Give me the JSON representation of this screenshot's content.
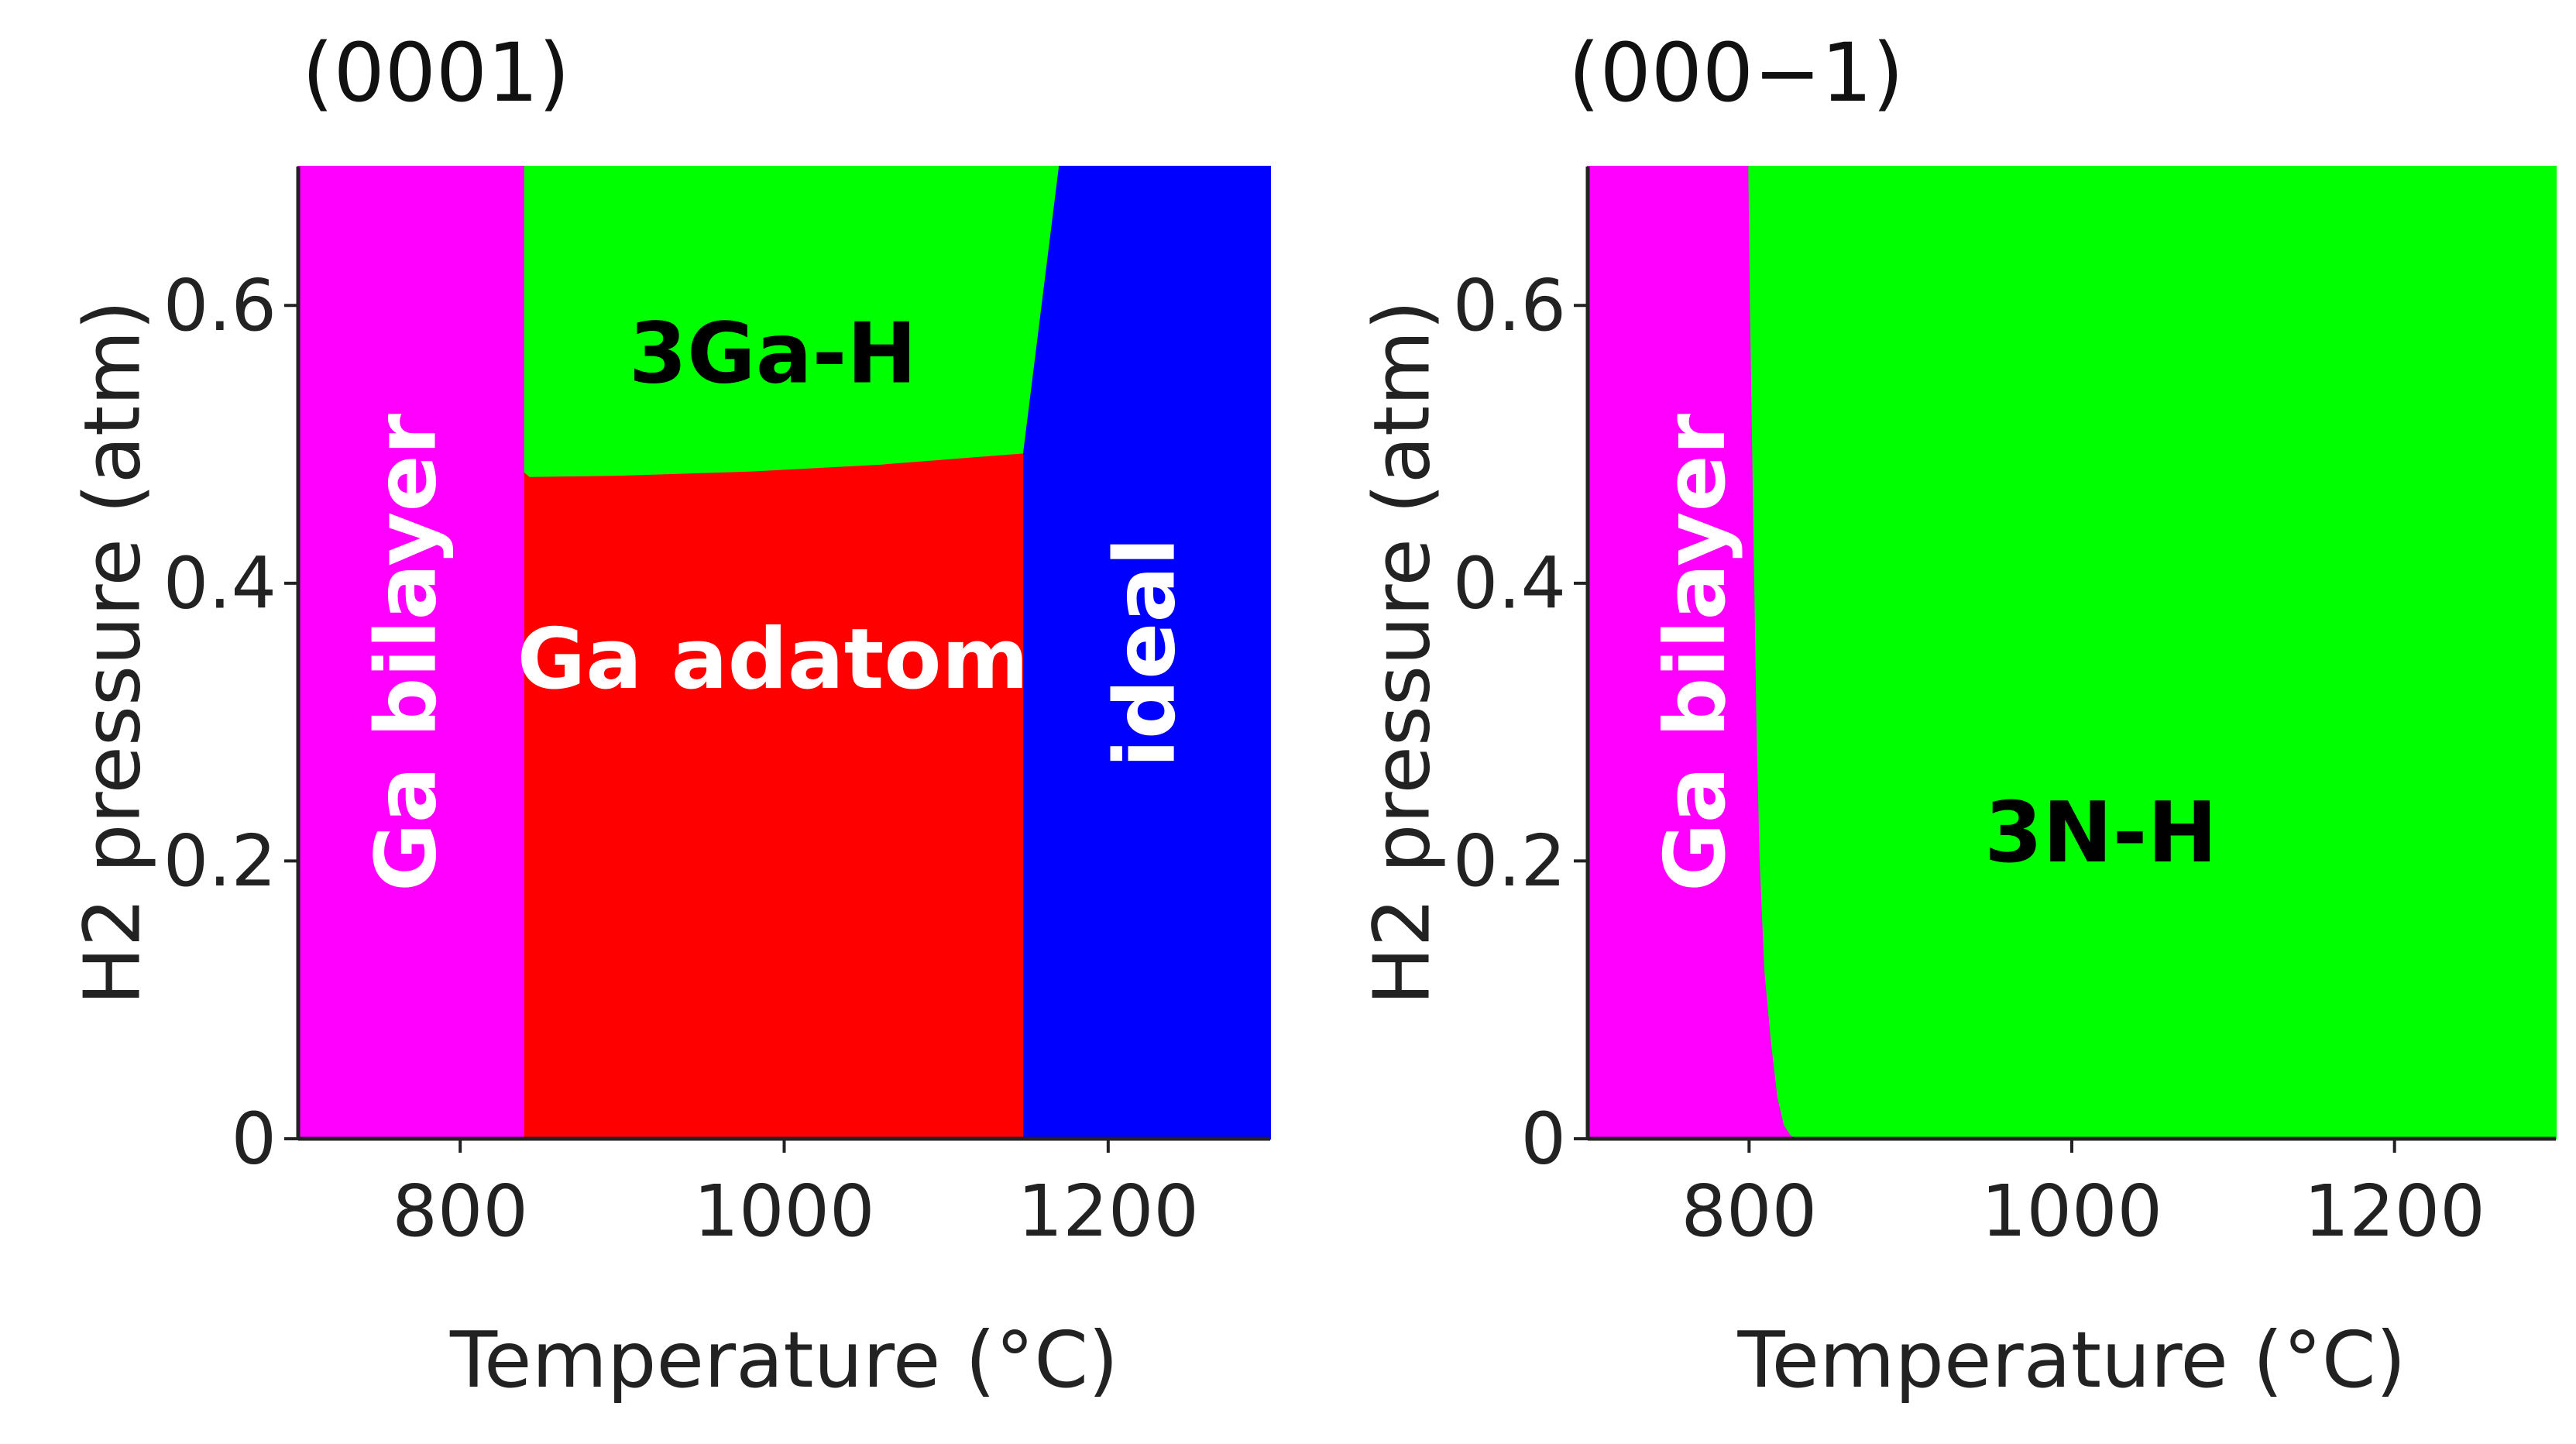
{
  "chart_data": [
    {
      "type": "area",
      "title": "(0001)",
      "xlabel": "Temperature (°C)",
      "ylabel": "H2 pressure (atm)",
      "xlim": [
        700,
        1300
      ],
      "ylim": [
        0,
        0.7
      ],
      "x_ticks": [
        "800",
        "1000",
        "1200"
      ],
      "x_tick_values": [
        800,
        1000,
        1200
      ],
      "y_ticks": [
        "0",
        "0.2",
        "0.4",
        "0.6"
      ],
      "y_tick_values": [
        0,
        0.2,
        0.4,
        0.6
      ],
      "regions": [
        {
          "name": "Ga bilayer",
          "color": "#ff00ff",
          "label_color": "#ffffff",
          "label_rotation": "vertical",
          "label_at": [
            767,
            0.35
          ],
          "polygon": [
            [
              700,
              0
            ],
            [
              840,
              0
            ],
            [
              840,
              0.7
            ],
            [
              700,
              0.7
            ]
          ]
        },
        {
          "name": "Ga adatom",
          "color": "#ff0000",
          "label_color": "#ffffff",
          "label_rotation": "horizontal",
          "label_at": [
            993,
            0.345
          ],
          "polygon": [
            [
              840,
              0
            ],
            [
              1148,
              0
            ],
            [
              1148,
              0.494
            ],
            [
              1060,
              0.486
            ],
            [
              980,
              0.481
            ],
            [
              900,
              0.478
            ],
            [
              843,
              0.477
            ],
            [
              840,
              0.48
            ]
          ]
        },
        {
          "name": "3Ga-H",
          "color": "#00ff00",
          "label_color": "#000000",
          "label_rotation": "horizontal",
          "label_at": [
            993,
            0.565
          ],
          "polygon": [
            [
              840,
              0.48
            ],
            [
              843,
              0.477
            ],
            [
              900,
              0.478
            ],
            [
              980,
              0.481
            ],
            [
              1060,
              0.486
            ],
            [
              1148,
              0.494
            ],
            [
              1170,
              0.7
            ],
            [
              840,
              0.7
            ]
          ]
        },
        {
          "name": "ideal",
          "color": "#0000ff",
          "label_color": "#ffffff",
          "label_rotation": "vertical",
          "label_at": [
            1223,
            0.35
          ],
          "polygon": [
            [
              1148,
              0
            ],
            [
              1300,
              0
            ],
            [
              1300,
              0.7
            ],
            [
              1170,
              0.7
            ],
            [
              1148,
              0.494
            ]
          ]
        }
      ]
    },
    {
      "type": "area",
      "title": "(000−1)",
      "xlabel": "Temperature (°C)",
      "ylabel": "H2 pressure (atm)",
      "xlim": [
        700,
        1300
      ],
      "ylim": [
        0,
        0.7
      ],
      "x_ticks": [
        "800",
        "1000",
        "1200"
      ],
      "x_tick_values": [
        800,
        1000,
        1200
      ],
      "y_ticks": [
        "0",
        "0.2",
        "0.4",
        "0.6"
      ],
      "y_tick_values": [
        0,
        0.2,
        0.4,
        0.6
      ],
      "regions": [
        {
          "name": "Ga bilayer",
          "color": "#ff00ff",
          "label_color": "#ffffff",
          "label_rotation": "vertical",
          "label_at": [
            767,
            0.35
          ],
          "polygon": [
            [
              700,
              0
            ],
            [
              830,
              0
            ],
            [
              826,
              0.003
            ],
            [
              822,
              0.01
            ],
            [
              818,
              0.03
            ],
            [
              814,
              0.07
            ],
            [
              810,
              0.12
            ],
            [
              807,
              0.2
            ],
            [
              805,
              0.3
            ],
            [
              803,
              0.45
            ],
            [
              801,
              0.6
            ],
            [
              800,
              0.7
            ],
            [
              700,
              0.7
            ]
          ]
        },
        {
          "name": "3N-H",
          "color": "#00ff00",
          "label_color": "#000000",
          "label_rotation": "horizontal",
          "label_at": [
            1018,
            0.22
          ],
          "polygon": [
            [
              830,
              0
            ],
            [
              1300,
              0
            ],
            [
              1300,
              0.7
            ],
            [
              800,
              0.7
            ],
            [
              801,
              0.6
            ],
            [
              803,
              0.45
            ],
            [
              805,
              0.3
            ],
            [
              807,
              0.2
            ],
            [
              810,
              0.12
            ],
            [
              814,
              0.07
            ],
            [
              818,
              0.03
            ],
            [
              822,
              0.01
            ],
            [
              826,
              0.003
            ]
          ]
        }
      ]
    }
  ]
}
